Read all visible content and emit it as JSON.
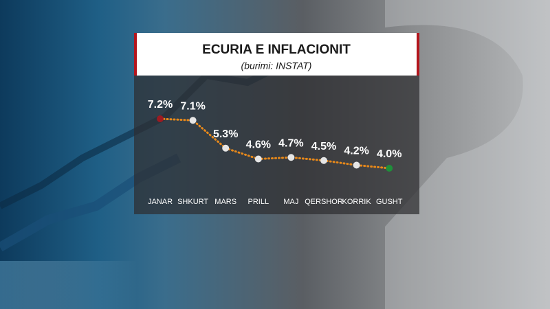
{
  "chart_data": {
    "type": "line",
    "title": "ECURIA E INFLACIONIT",
    "subtitle": "(burimi: INSTAT)",
    "categories": [
      "JANAR",
      "SHKURT",
      "MARS",
      "PRILL",
      "MAJ",
      "QERSHOR",
      "KORRIK",
      "GUSHT"
    ],
    "values": [
      7.2,
      7.1,
      5.3,
      4.6,
      4.7,
      4.5,
      4.2,
      4.0
    ],
    "value_labels": [
      "7.2%",
      "7.1%",
      "5.3%",
      "4.6%",
      "4.7%",
      "4.5%",
      "4.2%",
      "4.0%"
    ],
    "color": "#e8891a",
    "marker_colors": [
      "#9b1b22",
      "#e6e6e6",
      "#e6e6e6",
      "#e6e6e6",
      "#e6e6e6",
      "#e6e6e6",
      "#e6e6e6",
      "#1f8f3a"
    ]
  }
}
